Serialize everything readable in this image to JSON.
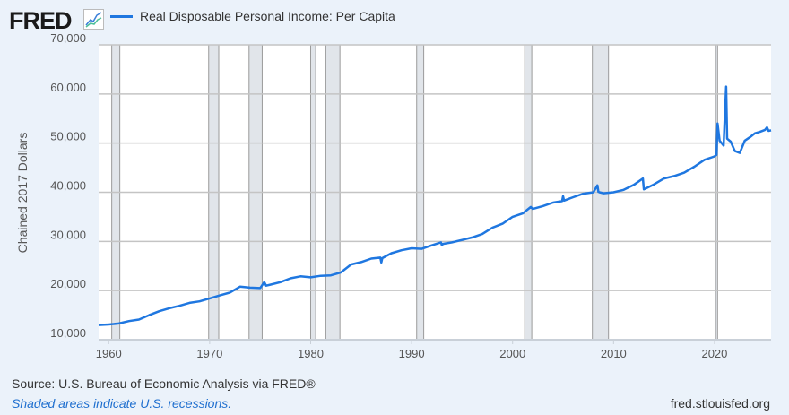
{
  "header": {
    "logo": "FRED",
    "logo_icon": "line-chart-icon"
  },
  "chart_data": {
    "type": "line",
    "title": "",
    "legend": [
      "Real Disposable Personal Income: Per Capita"
    ],
    "legend_placement": "top-left",
    "ylabel": "Chained 2017 Dollars",
    "xlabel": "",
    "ylim": [
      10000,
      70000
    ],
    "xlim": [
      1959.0,
      2025.6
    ],
    "yticks": [
      "10,000",
      "20,000",
      "30,000",
      "40,000",
      "50,000",
      "60,000",
      "70,000"
    ],
    "ytick_values": [
      10000,
      20000,
      30000,
      40000,
      50000,
      60000,
      70000
    ],
    "xticks": [
      "1960",
      "1970",
      "1980",
      "1990",
      "2000",
      "2010",
      "2020"
    ],
    "xtick_values": [
      1960,
      1970,
      1980,
      1990,
      2000,
      2010,
      2020
    ],
    "grid": "horizontal",
    "line_color": "#1f77e0",
    "recession_color": "#e1e5ea",
    "recessions": [
      [
        1960.3,
        1961.1
      ],
      [
        1969.9,
        1970.9
      ],
      [
        1973.9,
        1975.2
      ],
      [
        1980.0,
        1980.5
      ],
      [
        1981.5,
        1982.9
      ],
      [
        1990.5,
        1991.2
      ],
      [
        2001.2,
        2001.9
      ],
      [
        2007.9,
        2009.5
      ],
      [
        2020.1,
        2020.3
      ]
    ],
    "series": [
      {
        "name": "Real Disposable Personal Income: Per Capita",
        "x": [
          1959.0,
          1960,
          1961,
          1962,
          1963,
          1964,
          1965,
          1966,
          1967,
          1968,
          1969,
          1970,
          1971,
          1972,
          1973,
          1974,
          1975,
          1975.4,
          1975.6,
          1976,
          1977,
          1978,
          1979,
          1980,
          1981,
          1982,
          1983,
          1984,
          1985,
          1986,
          1986.9,
          1987.0,
          1987.1,
          1988,
          1989,
          1990,
          1991,
          1992,
          1992.9,
          1993.0,
          1993.1,
          1994,
          1995,
          1996,
          1997,
          1998,
          1999,
          2000,
          2001,
          2001.8,
          2002,
          2003,
          2004,
          2004.9,
          2005.0,
          2005.1,
          2006,
          2007,
          2008,
          2008.4,
          2008.5,
          2008.6,
          2009,
          2010,
          2011,
          2012,
          2012.9,
          2013.0,
          2013.1,
          2014,
          2015,
          2016,
          2017,
          2018,
          2019,
          2020.0,
          2020.2,
          2020.3,
          2020.5,
          2020.9,
          2021.0,
          2021.15,
          2021.25,
          2021.6,
          2022.0,
          2022.5,
          2023.0,
          2023.5,
          2024.0,
          2024.5,
          2025.0,
          2025.2,
          2025.35,
          2025.6
        ],
        "values": [
          13000,
          13100,
          13300,
          13800,
          14100,
          15000,
          15800,
          16400,
          16900,
          17500,
          17800,
          18400,
          19000,
          19600,
          20800,
          20600,
          20500,
          21700,
          21000,
          21200,
          21700,
          22500,
          22900,
          22700,
          23000,
          23100,
          23700,
          25300,
          25800,
          26500,
          26700,
          25700,
          26600,
          27600,
          28200,
          28600,
          28500,
          29200,
          29800,
          29200,
          29500,
          29800,
          30300,
          30800,
          31500,
          32800,
          33600,
          35000,
          35700,
          37000,
          36600,
          37200,
          37900,
          38200,
          39200,
          38300,
          39000,
          39700,
          40000,
          41400,
          40100,
          40000,
          39800,
          40000,
          40500,
          41500,
          42800,
          40600,
          40700,
          41600,
          42800,
          43300,
          44000,
          45200,
          46600,
          47300,
          47600,
          54000,
          50500,
          49500,
          54500,
          61500,
          50900,
          50300,
          48400,
          48000,
          50500,
          51200,
          52000,
          52300,
          52700,
          53200,
          52500,
          52600
        ]
      }
    ]
  },
  "footer": {
    "source": "Source: U.S. Bureau of Economic Analysis via FRED®",
    "note": "Shaded areas indicate U.S. recessions.",
    "site": "fred.stlouisfed.org"
  }
}
